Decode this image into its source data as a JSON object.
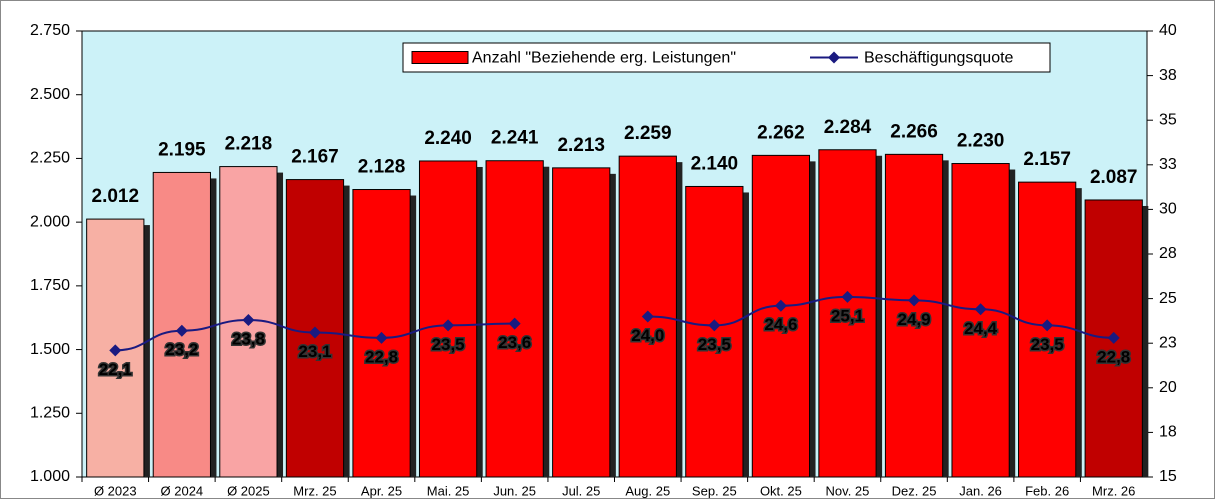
{
  "chart_data": {
    "type": "bar_line",
    "categories": [
      "Ø 2023",
      "Ø 2024",
      "Ø 2025",
      "Mrz. 25",
      "Apr. 25",
      "Mai. 25",
      "Jun. 25",
      "Jul. 25",
      "Aug. 25",
      "Sep. 25",
      "Okt. 25",
      "Nov. 25",
      "Dez. 25",
      "Jan. 26",
      "Feb. 26",
      "Mrz. 26"
    ],
    "series": [
      {
        "name": "Anzahl \"Beziehende erg. Leistungen\"",
        "type": "bar",
        "colors": [
          "#f7b0a4",
          "#f88a86",
          "#f9a4a4",
          "#c00000",
          "#ff0000",
          "#ff0000",
          "#ff0000",
          "#ff0000",
          "#ff0000",
          "#ff0000",
          "#ff0000",
          "#ff0000",
          "#ff0000",
          "#ff0000",
          "#ff0000",
          "#c00000"
        ],
        "values": [
          2012,
          2195,
          2218,
          2167,
          2128,
          2240,
          2241,
          2213,
          2259,
          2140,
          2262,
          2284,
          2266,
          2230,
          2157,
          2087
        ],
        "value_labels": [
          "2.012",
          "2.195",
          "2.218",
          "2.167",
          "2.128",
          "2.240",
          "2.241",
          "2.213",
          "2.259",
          "2.140",
          "2.262",
          "2.284",
          "2.266",
          "2.230",
          "2.157",
          "2.087"
        ]
      },
      {
        "name": "Beschäftigungsquote",
        "type": "line",
        "axis": "y2",
        "color": "#1a1a80",
        "values": [
          22.1,
          23.2,
          23.8,
          23.1,
          22.8,
          23.5,
          23.6,
          null,
          24.0,
          23.5,
          24.6,
          25.1,
          24.9,
          24.4,
          23.5,
          22.8
        ],
        "value_labels": [
          "22,1",
          "23,2",
          "23,8",
          "23,1",
          "22,8",
          "23,5",
          "23,6",
          null,
          "24,0",
          "23,5",
          "24,6",
          "25,1",
          "24,9",
          "24,4",
          "23,5",
          "22,8"
        ]
      }
    ],
    "ylim": [
      1000,
      2750
    ],
    "yticks": [
      {
        "value": 1000,
        "label": "1.000"
      },
      {
        "value": 1250,
        "label": "1.250"
      },
      {
        "value": 1500,
        "label": "1.500"
      },
      {
        "value": 1750,
        "label": "1.750"
      },
      {
        "value": 2000,
        "label": "2.000"
      },
      {
        "value": 2250,
        "label": "2.250"
      },
      {
        "value": 2500,
        "label": "2.500"
      },
      {
        "value": 2750,
        "label": "2.750"
      }
    ],
    "y2lim": [
      15,
      40
    ],
    "y2ticks": [
      15,
      {
        "value": 17.5,
        "label": "18"
      },
      20,
      {
        "value": 22.5,
        "label": "23"
      },
      25,
      {
        "value": 27.5,
        "label": "28"
      },
      30,
      {
        "value": 32.5,
        "label": "33"
      },
      35,
      {
        "value": 37.5,
        "label": "38"
      },
      40
    ],
    "plot_background": "#ccf2f8",
    "legend": "top"
  }
}
